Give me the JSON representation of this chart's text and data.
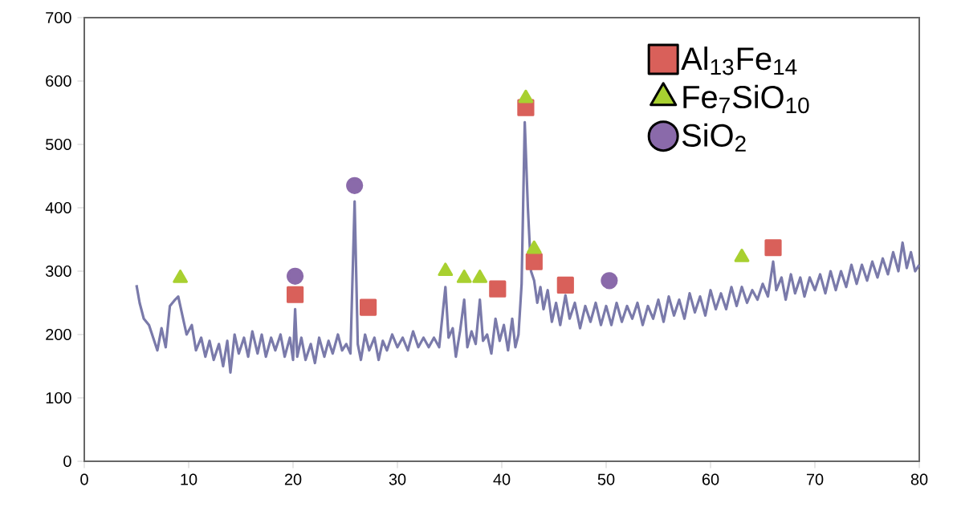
{
  "chart_data": {
    "type": "line",
    "xlim": [
      0,
      80
    ],
    "ylim": [
      0,
      700
    ],
    "xticks": [
      0,
      10,
      20,
      30,
      40,
      50,
      60,
      70,
      80
    ],
    "yticks": [
      0,
      100,
      200,
      300,
      400,
      500,
      600,
      700
    ],
    "legend": "top right",
    "series": [
      {
        "color": "#7a7aaa",
        "marker": "none",
        "x": [
          5.0,
          5.3,
          5.7,
          6.2,
          6.6,
          7.0,
          7.4,
          7.8,
          8.2,
          8.7,
          9.0,
          9.4,
          9.8,
          10.3,
          10.7,
          11.2,
          11.6,
          12.0,
          12.4,
          12.9,
          13.3,
          13.7,
          14.0,
          14.4,
          14.8,
          15.3,
          15.7,
          16.1,
          16.6,
          17.0,
          17.4,
          17.9,
          18.3,
          18.8,
          19.2,
          19.7,
          20.0,
          20.2,
          20.4,
          20.8,
          21.2,
          21.7,
          22.1,
          22.5,
          23.0,
          23.4,
          23.8,
          24.3,
          24.7,
          25.1,
          25.5,
          25.9,
          26.2,
          26.5,
          26.9,
          27.3,
          27.8,
          28.2,
          28.6,
          29.0,
          29.5,
          30.0,
          30.5,
          31.0,
          31.5,
          32.0,
          32.5,
          33.0,
          33.5,
          34.0,
          34.6,
          34.9,
          35.3,
          35.6,
          36.0,
          36.4,
          36.7,
          37.1,
          37.5,
          37.9,
          38.2,
          38.6,
          39.0,
          39.4,
          39.8,
          40.2,
          40.6,
          41.0,
          41.3,
          41.6,
          41.9,
          42.2,
          42.5,
          42.8,
          43.1,
          43.4,
          43.7,
          44.0,
          44.4,
          44.8,
          45.2,
          45.6,
          46.1,
          46.5,
          47.0,
          47.5,
          48.0,
          48.5,
          49.0,
          49.5,
          50.0,
          50.5,
          51.0,
          51.5,
          52.0,
          52.5,
          53.0,
          53.5,
          54.0,
          54.5,
          55.0,
          55.5,
          56.0,
          56.5,
          57.0,
          57.5,
          58.0,
          58.5,
          59.0,
          59.5,
          60.0,
          60.5,
          61.0,
          61.5,
          62.0,
          62.5,
          63.0,
          63.5,
          64.0,
          64.5,
          65.0,
          65.5,
          66.0,
          66.3,
          66.8,
          67.2,
          67.7,
          68.1,
          68.6,
          69.0,
          69.5,
          70.0,
          70.5,
          71.0,
          71.5,
          72.0,
          72.5,
          73.0,
          73.5,
          74.0,
          74.5,
          75.0,
          75.5,
          76.0,
          76.5,
          77.0,
          77.5,
          78.0,
          78.4,
          78.8,
          79.2,
          79.6,
          80.0
        ],
        "values": [
          278,
          250,
          225,
          215,
          195,
          175,
          210,
          180,
          245,
          255,
          260,
          230,
          200,
          215,
          175,
          195,
          165,
          190,
          160,
          185,
          150,
          190,
          140,
          200,
          170,
          195,
          165,
          205,
          170,
          200,
          165,
          195,
          175,
          200,
          165,
          195,
          160,
          240,
          165,
          195,
          160,
          185,
          155,
          195,
          165,
          190,
          170,
          200,
          175,
          185,
          170,
          410,
          185,
          160,
          200,
          175,
          195,
          160,
          190,
          175,
          200,
          180,
          195,
          175,
          205,
          180,
          195,
          180,
          195,
          180,
          275,
          195,
          210,
          165,
          205,
          255,
          180,
          205,
          185,
          255,
          190,
          200,
          170,
          225,
          190,
          215,
          175,
          225,
          180,
          200,
          280,
          535,
          400,
          300,
          285,
          250,
          275,
          240,
          270,
          220,
          250,
          215,
          262,
          225,
          250,
          210,
          245,
          220,
          250,
          215,
          245,
          215,
          250,
          220,
          245,
          225,
          250,
          215,
          245,
          225,
          255,
          220,
          260,
          230,
          255,
          225,
          265,
          235,
          260,
          230,
          270,
          240,
          265,
          240,
          275,
          245,
          275,
          250,
          270,
          255,
          280,
          260,
          315,
          270,
          290,
          255,
          295,
          265,
          290,
          260,
          290,
          270,
          295,
          265,
          300,
          270,
          300,
          275,
          310,
          280,
          310,
          285,
          315,
          290,
          320,
          295,
          330,
          300,
          345,
          305,
          330,
          300,
          310
        ]
      },
      {
        "type": "scatter",
        "name": "Al$_{13}$Fe$_{14}$",
        "color": "#d9605a",
        "marker": "square",
        "x": [
          20.2,
          27.2,
          39.6,
          42.3,
          43.1,
          46.1,
          66.0
        ],
        "values": [
          263,
          243,
          272,
          558,
          315,
          278,
          337
        ]
      },
      {
        "type": "scatter",
        "name": "Fe$_{7}$SiO$_{10}$",
        "color": "#a8d030",
        "marker": "triangle",
        "x": [
          9.2,
          34.6,
          36.4,
          37.9,
          42.3,
          43.1,
          63.0
        ],
        "values": [
          289,
          300,
          289,
          289,
          573,
          335,
          322
        ]
      },
      {
        "type": "scatter",
        "name": "SiO$_{2}$",
        "color": "#8a6aaa",
        "marker": "circle",
        "x": [
          20.2,
          25.9,
          50.3
        ],
        "values": [
          292,
          435,
          285
        ]
      }
    ]
  }
}
